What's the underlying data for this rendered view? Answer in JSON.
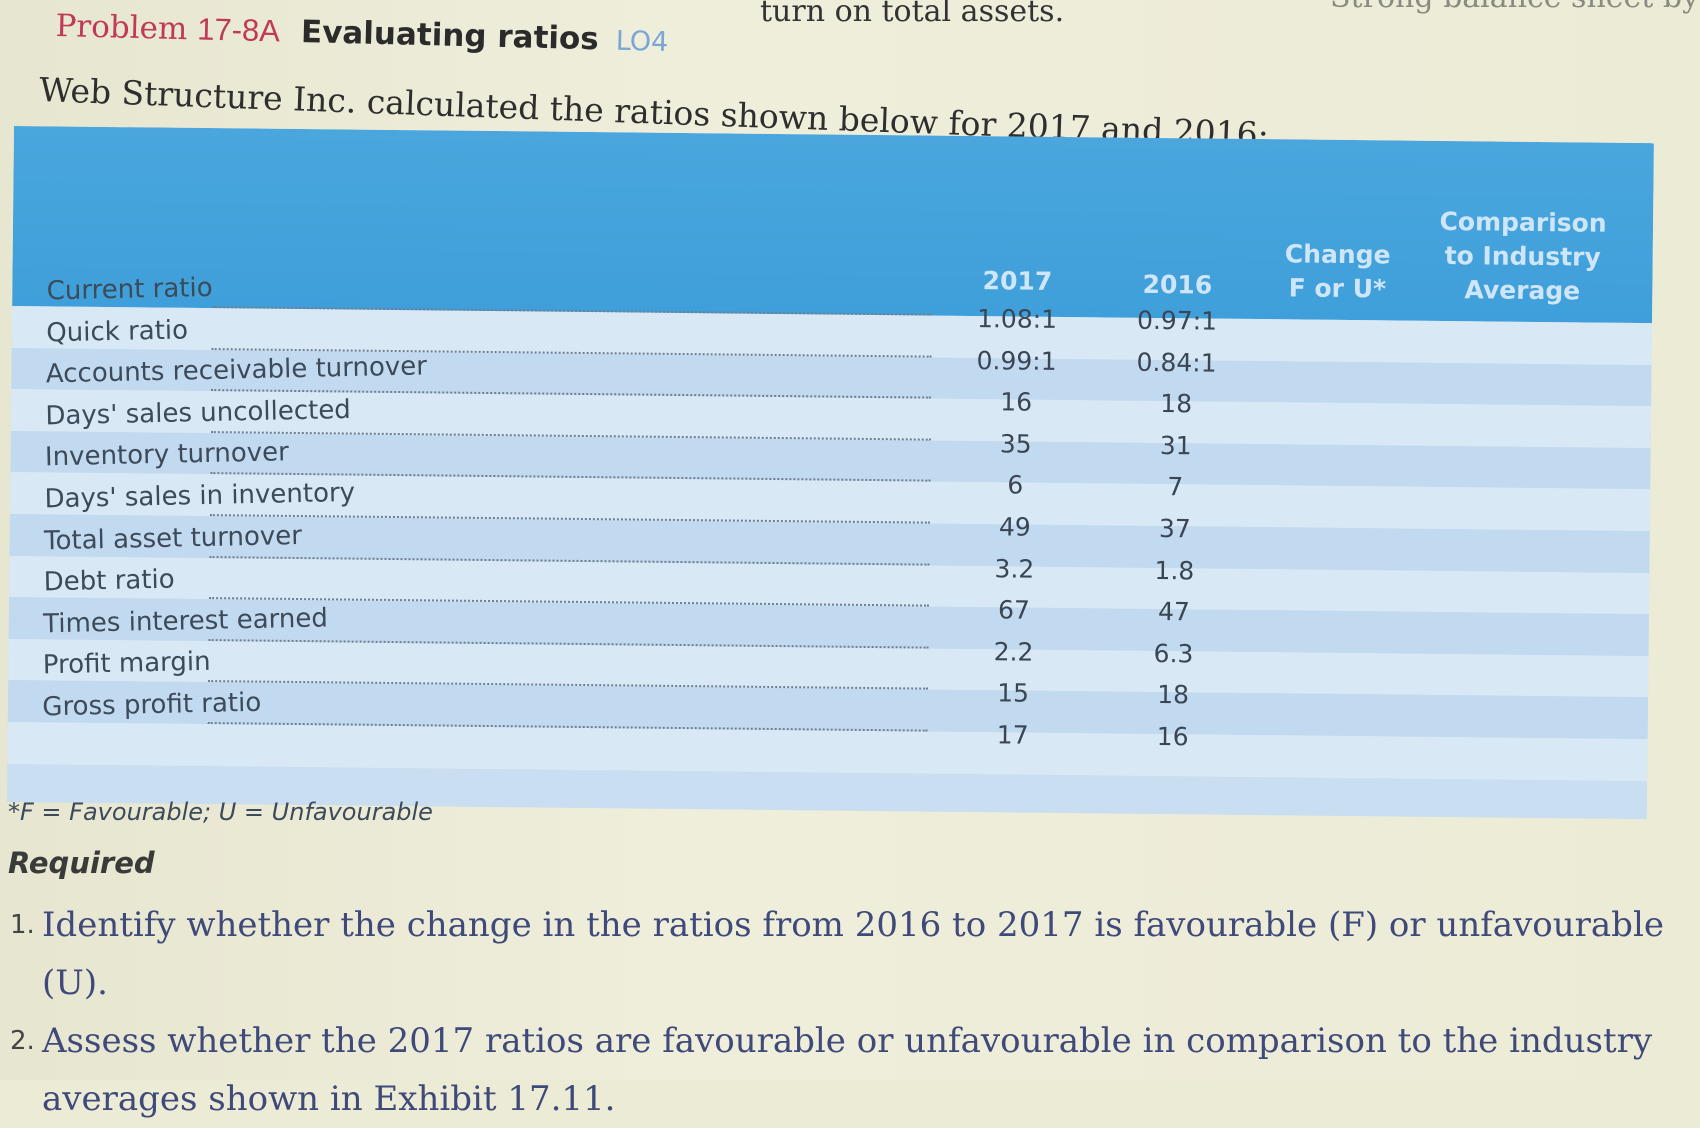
{
  "top_partial": {
    "text": "turn on total assets.",
    "right_text": "Strong balance sheet by"
  },
  "header": {
    "problem_prefix": "Problem",
    "problem_number": "17-8A",
    "title": "Evaluating ratios",
    "learning_objective": "LO4"
  },
  "intro": "Web Structure Inc. calculated the ratios shown below for 2017 and 2016:",
  "table": {
    "columns": {
      "year_2017": "2017",
      "year_2016": "2016",
      "change_line1": "Change",
      "change_line2": "F or U*",
      "comparison_line1": "Comparison",
      "comparison_line2": "to Industry",
      "comparison_line3": "Average"
    },
    "rows": [
      {
        "label": "Current ratio",
        "v2017": "1.08:1",
        "v2016": "0.97:1"
      },
      {
        "label": "Quick ratio",
        "v2017": "0.99:1",
        "v2016": "0.84:1"
      },
      {
        "label": "Accounts receivable turnover",
        "v2017": "16",
        "v2016": "18"
      },
      {
        "label": "Days' sales uncollected",
        "v2017": "35",
        "v2016": "31"
      },
      {
        "label": "Inventory turnover",
        "v2017": "6",
        "v2016": "7"
      },
      {
        "label": "Days' sales in inventory",
        "v2017": "49",
        "v2016": "37"
      },
      {
        "label": "Total asset turnover",
        "v2017": "3.2",
        "v2016": "1.8"
      },
      {
        "label": "Debt ratio",
        "v2017": "67",
        "v2016": "47"
      },
      {
        "label": "Times interest earned",
        "v2017": "2.2",
        "v2016": "6.3"
      },
      {
        "label": "Profit margin",
        "v2017": "15",
        "v2016": "18"
      },
      {
        "label": "Gross profit ratio",
        "v2017": "17",
        "v2016": "16"
      }
    ]
  },
  "footnote": "*F = Favourable; U = Unfavourable",
  "required": {
    "heading": "Required",
    "items": [
      {
        "num": "1.",
        "text": "Identify whether the change in the ratios from 2016 to 2017 is favourable (F) or unfavourable (U)."
      },
      {
        "num": "2.",
        "text": "Assess whether the 2017 ratios are favourable or unfavourable in comparison to the industry averages shown in Exhibit 17.11."
      }
    ]
  }
}
